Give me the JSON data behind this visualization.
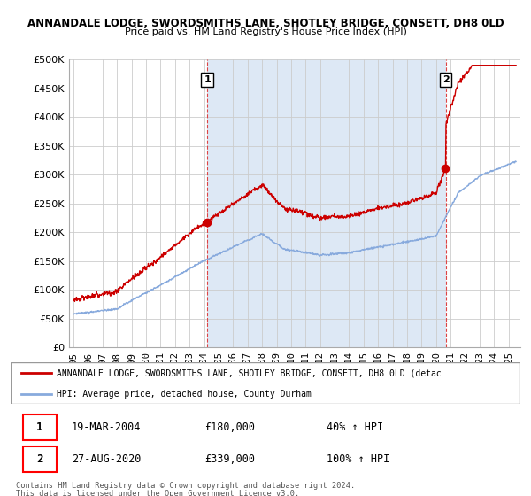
{
  "title1": "ANNANDALE LODGE, SWORDSMITHS LANE, SHOTLEY BRIDGE, CONSETT, DH8 0LD",
  "title2": "Price paid vs. HM Land Registry's House Price Index (HPI)",
  "legend_property": "ANNANDALE LODGE, SWORDSMITHS LANE, SHOTLEY BRIDGE, CONSETT, DH8 0LD (detac",
  "legend_hpi": "HPI: Average price, detached house, County Durham",
  "sale1_date": "19-MAR-2004",
  "sale1_price": "£180,000",
  "sale1_pct": "40% ↑ HPI",
  "sale1_year": 2004.22,
  "sale1_value": 180000,
  "sale2_date": "27-AUG-2020",
  "sale2_price": "£339,000",
  "sale2_pct": "100% ↑ HPI",
  "sale2_year": 2020.65,
  "sale2_value": 339000,
  "property_color": "#cc0000",
  "hpi_color": "#88aadd",
  "shade_color": "#dde8f5",
  "vline_color": "#dd4444",
  "ylim": [
    0,
    500000
  ],
  "yticks": [
    0,
    50000,
    100000,
    150000,
    200000,
    250000,
    300000,
    350000,
    400000,
    450000,
    500000
  ],
  "footer1": "Contains HM Land Registry data © Crown copyright and database right 2024.",
  "footer2": "This data is licensed under the Open Government Licence v3.0.",
  "grid_color": "#cccccc",
  "label_box_color": "#cc0000"
}
